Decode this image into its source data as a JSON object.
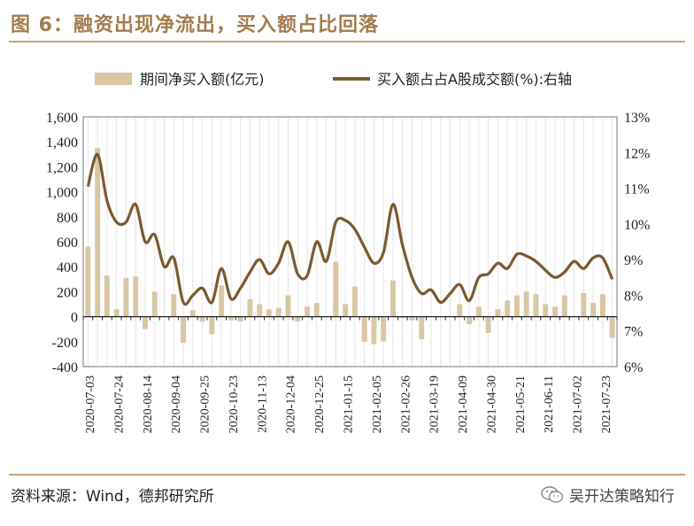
{
  "header": {
    "title": "图 6：融资出现净流出，买入额占比回落"
  },
  "footer": {
    "source": "资料来源：Wind，德邦研究所",
    "brand": "吴开达策略知行",
    "brand_icon": "wechat-icon"
  },
  "colors": {
    "bar": "#d9c7a4",
    "line": "#7b5a32",
    "title": "#a37c4e",
    "grid": "#e3e3e3"
  },
  "chart_data": {
    "type": "bar+line",
    "legend": [
      "期间净买入额(亿元)",
      "买入额占占A股成交额(%):右轴"
    ],
    "legend_placement": "top",
    "left_axis": {
      "min": -400,
      "max": 1600,
      "ticks": [
        "-400",
        "-200",
        "0",
        "200",
        "400",
        "600",
        "800",
        "1,000",
        "1,200",
        "1,400",
        "1,600"
      ]
    },
    "right_axis": {
      "min": 6,
      "max": 13,
      "ticks": [
        "6%",
        "7%",
        "8%",
        "9%",
        "10%",
        "11%",
        "12%",
        "13%"
      ]
    },
    "x_tick_labels": [
      "2020-07-03",
      "2020-07-24",
      "2020-08-14",
      "2020-09-04",
      "2020-09-25",
      "2020-10-23",
      "2020-11-13",
      "2020-12-04",
      "2020-12-25",
      "2021-01-15",
      "2021-02-05",
      "2021-02-26",
      "2021-03-19",
      "2021-04-09",
      "2021-04-30",
      "2021-05-21",
      "2021-06-11",
      "2021-07-02",
      "2021-07-23"
    ],
    "grid": true,
    "bars": [
      560,
      1350,
      330,
      60,
      310,
      320,
      -100,
      200,
      0,
      180,
      -210,
      50,
      -40,
      -140,
      250,
      -30,
      -40,
      140,
      100,
      60,
      70,
      170,
      -40,
      80,
      110,
      0,
      440,
      100,
      240,
      -200,
      -220,
      -200,
      290,
      -10,
      -30,
      -180,
      0,
      0,
      0,
      100,
      -60,
      80,
      -130,
      60,
      130,
      170,
      200,
      180,
      100,
      80,
      170,
      0,
      190,
      110,
      180,
      -170
    ],
    "line": [
      11.05,
      11.95,
      10.65,
      10.05,
      10.05,
      10.55,
      9.5,
      9.7,
      8.8,
      9.05,
      7.8,
      8.0,
      8.2,
      7.8,
      8.75,
      7.9,
      8.2,
      8.65,
      9.0,
      8.6,
      8.9,
      9.5,
      8.6,
      8.55,
      9.5,
      8.95,
      10.05,
      10.1,
      9.85,
      9.35,
      8.9,
      9.2,
      10.55,
      9.4,
      8.5,
      8.05,
      8.15,
      7.8,
      8.05,
      8.3,
      7.85,
      8.5,
      8.6,
      8.9,
      8.75,
      9.15,
      9.1,
      8.95,
      8.7,
      8.5,
      8.65,
      8.95,
      8.75,
      9.05,
      9.05,
      8.45
    ]
  }
}
